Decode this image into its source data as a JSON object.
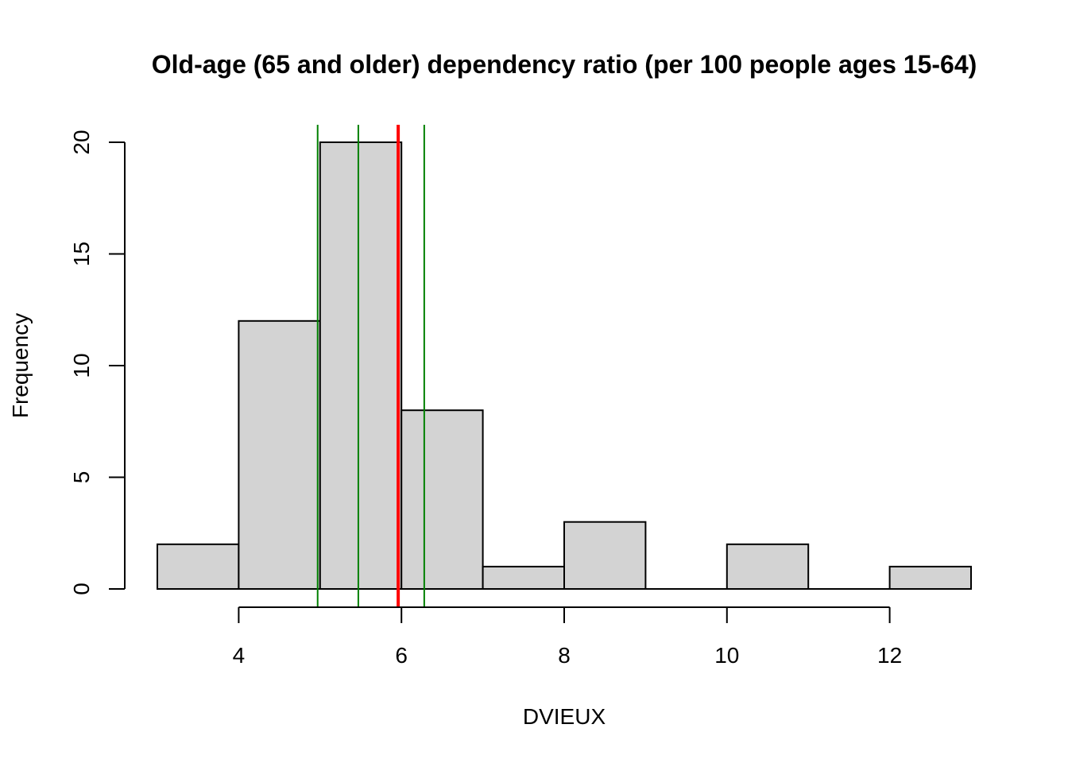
{
  "chart_data": {
    "type": "bar",
    "subtype": "histogram",
    "title": "Old-age (65 and older) dependency ratio (per 100 people ages 15-64)",
    "xlabel": "DVIEUX",
    "ylabel": "Frequency",
    "bins": [
      {
        "from": 3,
        "to": 4,
        "count": 2
      },
      {
        "from": 4,
        "to": 5,
        "count": 12
      },
      {
        "from": 5,
        "to": 6,
        "count": 20
      },
      {
        "from": 6,
        "to": 7,
        "count": 8
      },
      {
        "from": 7,
        "to": 8,
        "count": 1
      },
      {
        "from": 8,
        "to": 9,
        "count": 3
      },
      {
        "from": 9,
        "to": 10,
        "count": 0
      },
      {
        "from": 10,
        "to": 11,
        "count": 2
      },
      {
        "from": 11,
        "to": 12,
        "count": 0
      },
      {
        "from": 12,
        "to": 13,
        "count": 1
      }
    ],
    "x_ticks": [
      4,
      6,
      8,
      10,
      12
    ],
    "y_ticks": [
      0,
      5,
      10,
      15,
      20
    ],
    "xlim": [
      3,
      13
    ],
    "ylim": [
      0,
      20
    ],
    "bar_color": "#d3d3d3",
    "grid": false,
    "vertical_lines": [
      {
        "x": 4.97,
        "color": "#008000",
        "kind": "first-quartile"
      },
      {
        "x": 5.47,
        "color": "#008000",
        "kind": "median"
      },
      {
        "x": 5.96,
        "color": "#ff0000",
        "kind": "mean"
      },
      {
        "x": 6.28,
        "color": "#008000",
        "kind": "third-quartile"
      }
    ]
  }
}
